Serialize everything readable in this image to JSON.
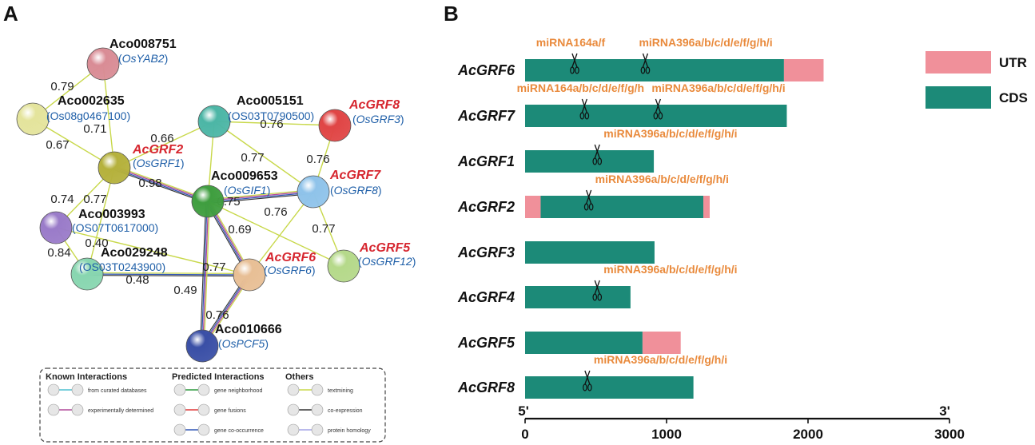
{
  "panel_a": {
    "letter": "A",
    "nodes": [
      {
        "id": "n1",
        "label": "Aco008751",
        "ortholog": "OsYAB2",
        "ortholog_italic": true,
        "label_color": "black",
        "color": "#d98c95"
      },
      {
        "id": "n2",
        "label": "Aco002635",
        "ortholog": "Os08g0467100",
        "ortholog_italic": false,
        "label_color": "black",
        "color": "#e4e49c"
      },
      {
        "id": "n3",
        "label": "Aco005151",
        "ortholog": "OS03T0790500",
        "ortholog_italic": false,
        "label_color": "black",
        "color": "#4cb6a6"
      },
      {
        "id": "n4",
        "label": "AcGRF8",
        "ortholog": "OsGRF3",
        "ortholog_italic": true,
        "label_color": "red",
        "color": "#e04545"
      },
      {
        "id": "n5",
        "label": "AcGRF2",
        "ortholog": "OsGRF1",
        "ortholog_italic": true,
        "label_color": "red",
        "color": "#b5b13c"
      },
      {
        "id": "n6",
        "label": "Aco009653",
        "ortholog": "OsGIF1",
        "ortholog_italic": true,
        "label_color": "black",
        "color": "#3f9e3f"
      },
      {
        "id": "n7",
        "label": "AcGRF7",
        "ortholog": "OsGRF8",
        "ortholog_italic": true,
        "label_color": "red",
        "color": "#8fc3ea"
      },
      {
        "id": "n8",
        "label": "Aco003993",
        "ortholog": "OS07T0617000",
        "ortholog_italic": false,
        "label_color": "black",
        "color": "#9a7bc9"
      },
      {
        "id": "n9",
        "label": "Aco029248",
        "ortholog": "OS03T0243900",
        "ortholog_italic": false,
        "label_color": "black",
        "color": "#88d6b0"
      },
      {
        "id": "n10",
        "label": "AcGRF6",
        "ortholog": "OsGRF6",
        "ortholog_italic": true,
        "label_color": "red",
        "color": "#e8bf95"
      },
      {
        "id": "n11",
        "label": "AcGRF5",
        "ortholog": "OsGRF12",
        "ortholog_italic": true,
        "label_color": "red",
        "color": "#b5d98a"
      },
      {
        "id": "n12",
        "label": "Aco010666",
        "ortholog": "OsPCF5",
        "ortholog_italic": true,
        "label_color": "black",
        "color": "#3a4fa6"
      }
    ],
    "edges": [
      {
        "from": "n1",
        "to": "n2",
        "score": "0.79",
        "type": "textmining"
      },
      {
        "from": "n2",
        "to": "n5",
        "score": "0.67",
        "type": "textmining"
      },
      {
        "from": "n1",
        "to": "n5",
        "score": "0.71",
        "type": "textmining"
      },
      {
        "from": "n3",
        "to": "n5",
        "score": "0.66",
        "type": "textmining"
      },
      {
        "from": "n3",
        "to": "n4",
        "score": "0.76",
        "type": "textmining"
      },
      {
        "from": "n3",
        "to": "n7",
        "score": "0.77",
        "type": "textmining"
      },
      {
        "from": "n3",
        "to": "n6",
        "score": "",
        "type": "textmining"
      },
      {
        "from": "n4",
        "to": "n7",
        "score": "0.76",
        "type": "textmining"
      },
      {
        "from": "n5",
        "to": "n6",
        "score": "0.98",
        "type": "multi"
      },
      {
        "from": "n6",
        "to": "n7",
        "score": "0.75",
        "type": "multi"
      },
      {
        "from": "n5",
        "to": "n8",
        "score": "0.74",
        "type": "textmining"
      },
      {
        "from": "n5",
        "to": "n9",
        "score": "0.77",
        "type": "textmining"
      },
      {
        "from": "n8",
        "to": "n9",
        "score": "0.84",
        "type": "textmining"
      },
      {
        "from": "n8",
        "to": "n10",
        "score": "0.40",
        "type": "textmining"
      },
      {
        "from": "n9",
        "to": "n10",
        "score": "0.48",
        "type": "multi2"
      },
      {
        "from": "n6",
        "to": "n10",
        "score": "0.77",
        "type": "multi"
      },
      {
        "from": "n7",
        "to": "n10",
        "score": "0.69",
        "type": "textmining"
      },
      {
        "from": "n6",
        "to": "n11",
        "score": "0.76",
        "type": "textmining"
      },
      {
        "from": "n7",
        "to": "n11",
        "score": "0.77",
        "type": "textmining"
      },
      {
        "from": "n6",
        "to": "n12",
        "score": "0.49",
        "type": "multi"
      },
      {
        "from": "n10",
        "to": "n12",
        "score": "0.76",
        "type": "multi"
      }
    ],
    "legend": {
      "groups": [
        {
          "title": "Known Interactions",
          "items": [
            {
              "label": "from curated databases",
              "color": "#4fc1d0"
            },
            {
              "label": "experimentally determined",
              "color": "#b04a9a"
            }
          ]
        },
        {
          "title": "Predicted Interactions",
          "items": [
            {
              "label": "gene neighborhood",
              "color": "#2e9a3e"
            },
            {
              "label": "gene fusions",
              "color": "#e03a3a"
            },
            {
              "label": "gene co-occurrence",
              "color": "#3156b5"
            }
          ]
        },
        {
          "title": "Others",
          "items": [
            {
              "label": "textmining",
              "color": "#c8d84a"
            },
            {
              "label": "co-expression",
              "color": "#333333"
            },
            {
              "label": "protein homology",
              "color": "#a3a3e6"
            }
          ]
        }
      ]
    }
  },
  "panel_b": {
    "letter": "B",
    "chart_data": {
      "type": "bar",
      "x_axis": {
        "min": 0,
        "max": 3000,
        "ticks": [
          0,
          1000,
          2000,
          3000
        ],
        "left_end_label": "5'",
        "right_end_label": "3'"
      },
      "legend": [
        {
          "name": "UTR",
          "color": "#f0909a"
        },
        {
          "name": "CDS",
          "color": "#1c8a78"
        }
      ],
      "genes": [
        {
          "name": "AcGRF6",
          "segments": [
            {
              "type": "CDS",
              "start": 0,
              "end": 1830
            },
            {
              "type": "UTR",
              "start": 1830,
              "end": 2110
            }
          ],
          "sites": [
            {
              "label": "miRNA164a/f",
              "pos": 350
            },
            {
              "label": "miRNA396a/b/c/d/e/f/g/h/i",
              "pos": 850
            }
          ]
        },
        {
          "name": "AcGRF7",
          "segments": [
            {
              "type": "CDS",
              "start": 0,
              "end": 1850
            }
          ],
          "sites": [
            {
              "label": "miRNA164a/b/c/d/e/f/g/h",
              "pos": 420
            },
            {
              "label": "miRNA396a/b/c/d/e/f/g/h/i",
              "pos": 940
            }
          ]
        },
        {
          "name": "AcGRF1",
          "segments": [
            {
              "type": "CDS",
              "start": 0,
              "end": 910
            }
          ],
          "sites": [
            {
              "label": "miRNA396a/b/c/d/e/f/g/h/i",
              "pos": 510
            }
          ]
        },
        {
          "name": "AcGRF2",
          "segments": [
            {
              "type": "UTR",
              "start": 0,
              "end": 110
            },
            {
              "type": "CDS",
              "start": 110,
              "end": 1260
            },
            {
              "type": "UTR",
              "start": 1260,
              "end": 1305
            }
          ],
          "sites": [
            {
              "label": "miRNA396a/b/c/d/e/f/g/h/i",
              "pos": 450
            }
          ]
        },
        {
          "name": "AcGRF3",
          "segments": [
            {
              "type": "CDS",
              "start": 0,
              "end": 915
            }
          ],
          "sites": []
        },
        {
          "name": "AcGRF4",
          "segments": [
            {
              "type": "CDS",
              "start": 0,
              "end": 745
            }
          ],
          "sites": [
            {
              "label": "miRNA396a/b/c/d/e/f/g/h/i",
              "pos": 510
            }
          ]
        },
        {
          "name": "AcGRF5",
          "segments": [
            {
              "type": "CDS",
              "start": 0,
              "end": 830
            },
            {
              "type": "UTR",
              "start": 830,
              "end": 1100
            }
          ],
          "sites": []
        },
        {
          "name": "AcGRF8",
          "segments": [
            {
              "type": "CDS",
              "start": 0,
              "end": 1190
            }
          ],
          "sites": [
            {
              "label": "miRNA396a/b/c/d/e/f/g/h/i",
              "pos": 440
            }
          ]
        }
      ]
    }
  }
}
